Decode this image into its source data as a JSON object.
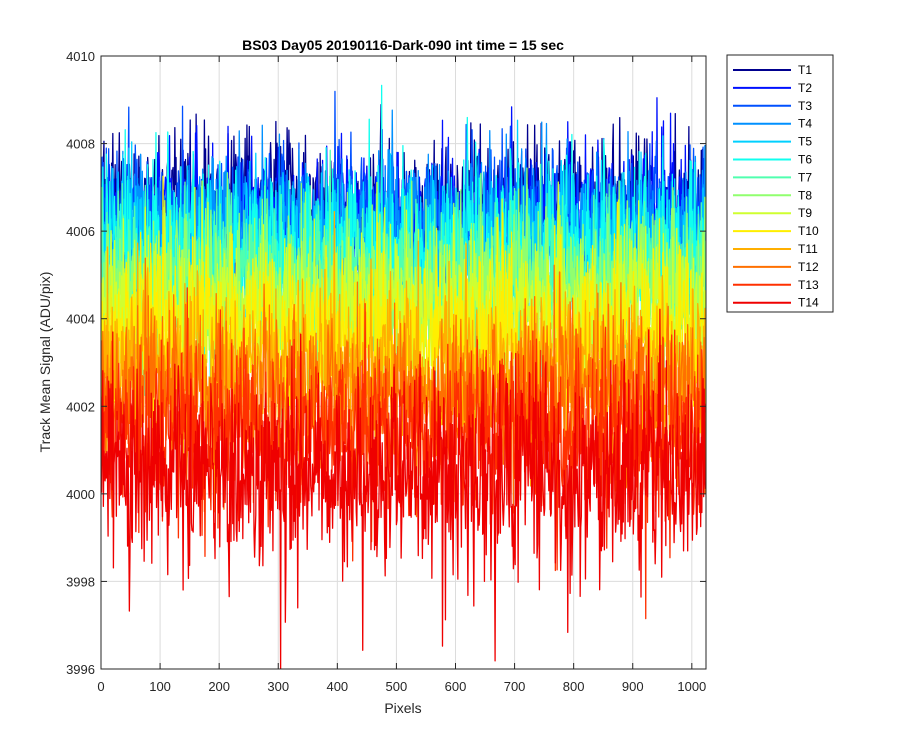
{
  "chart_data": {
    "type": "line",
    "title": "BS03 Day05 20190116-Dark-090 int time = 15 sec",
    "xlabel": "Pixels",
    "ylabel": "Track Mean Signal (ADU/pix)",
    "xlim": [
      0,
      1024
    ],
    "ylim": [
      3996,
      4010
    ],
    "xticks": [
      0,
      100,
      200,
      300,
      400,
      500,
      600,
      700,
      800,
      900,
      1000
    ],
    "yticks": [
      3996,
      3998,
      4000,
      4002,
      4004,
      4006,
      4008,
      4010
    ],
    "grid": true,
    "legend_position": "outside-right-top",
    "series_length": 1024,
    "series": [
      {
        "name": "T1",
        "color": "#00008f",
        "mean": 4006.6,
        "typical_min": 4004.6,
        "typical_max": 4008.8
      },
      {
        "name": "T2",
        "color": "#0010ff",
        "mean": 4006.4,
        "typical_min": 4004.4,
        "typical_max": 4008.7
      },
      {
        "name": "T3",
        "color": "#0050ff",
        "mean": 4006.2,
        "typical_min": 4004.2,
        "typical_max": 4008.6
      },
      {
        "name": "T4",
        "color": "#0090ff",
        "mean": 4006.0,
        "typical_min": 4004.0,
        "typical_max": 4008.7
      },
      {
        "name": "T5",
        "color": "#00d0ff",
        "mean": 4005.6,
        "typical_min": 4003.6,
        "typical_max": 4008.2
      },
      {
        "name": "T6",
        "color": "#10ffef",
        "mean": 4005.3,
        "typical_min": 4003.3,
        "typical_max": 4009.5
      },
      {
        "name": "T7",
        "color": "#50ffaf",
        "mean": 4004.9,
        "typical_min": 4002.9,
        "typical_max": 4007.9
      },
      {
        "name": "T8",
        "color": "#90ff6f",
        "mean": 4004.6,
        "typical_min": 4002.6,
        "typical_max": 4007.6
      },
      {
        "name": "T9",
        "color": "#cfff30",
        "mean": 4004.2,
        "typical_min": 4002.2,
        "typical_max": 4007.2
      },
      {
        "name": "T10",
        "color": "#ffef00",
        "mean": 4003.6,
        "typical_min": 4001.4,
        "typical_max": 4006.8
      },
      {
        "name": "T11",
        "color": "#ffaf00",
        "mean": 4002.8,
        "typical_min": 4000.6,
        "typical_max": 4006.0
      },
      {
        "name": "T12",
        "color": "#ff7000",
        "mean": 4002.2,
        "typical_min": 4000.0,
        "typical_max": 4005.4
      },
      {
        "name": "T13",
        "color": "#ff3000",
        "mean": 4001.4,
        "typical_min": 3999.0,
        "typical_max": 4004.4
      },
      {
        "name": "T14",
        "color": "#ef0000",
        "mean": 4000.4,
        "typical_min": 3997.2,
        "typical_max": 4003.6
      }
    ]
  }
}
